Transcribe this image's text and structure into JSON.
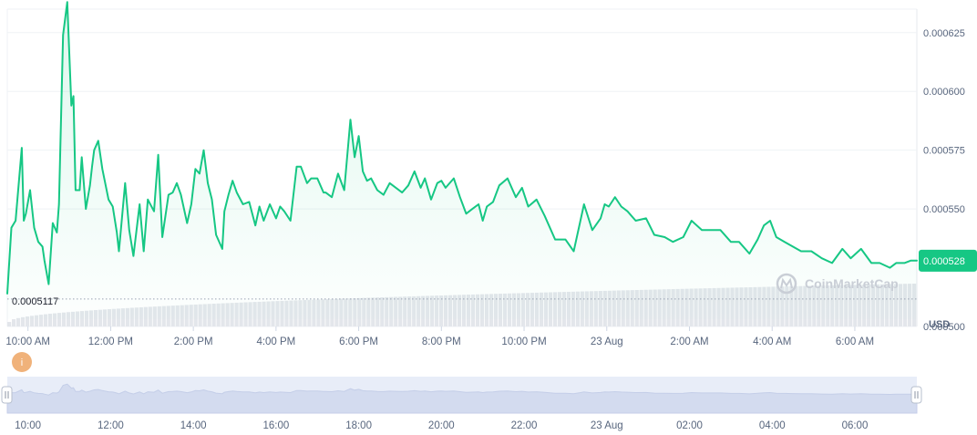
{
  "chart_data": {
    "type": "line",
    "currency_label": "USD",
    "watermark": "CoinMarketCap",
    "info_badge": "i",
    "y_ticks": [
      "0.000625",
      "0.000600",
      "0.000575",
      "0.000550",
      "0.000500"
    ],
    "ylim": [
      0.0005,
      0.000635
    ],
    "current_price_label": "0.000528",
    "min_price_label": "0.0005117",
    "x_tick_labels": [
      "10:00 AM",
      "12:00 PM",
      "2:00 PM",
      "4:00 PM",
      "6:00 PM",
      "8:00 PM",
      "10:00 PM",
      "23 Aug",
      "2:00 AM",
      "4:00 AM",
      "6:00 AM"
    ],
    "x_tick_hours": [
      10,
      12,
      14,
      16,
      18,
      20,
      22,
      24,
      26,
      28,
      30
    ],
    "navigator_labels": [
      "10:00",
      "12:00",
      "14:00",
      "16:00",
      "18:00",
      "20:00",
      "22:00",
      "23 Aug",
      "02:00",
      "04:00",
      "06:00"
    ],
    "colors": {
      "line": "#16c784",
      "grid": "#eff2f5",
      "volume": "#e3e6eb",
      "badge": "#f0b27a",
      "navigator": "#e4e9f7"
    },
    "x_hours": [
      9.5,
      9.6,
      9.7,
      9.85,
      9.9,
      9.95,
      10.05,
      10.15,
      10.25,
      10.35,
      10.4,
      10.5,
      10.6,
      10.7,
      10.75,
      10.85,
      10.95,
      11.05,
      11.1,
      11.15,
      11.25,
      11.3,
      11.4,
      11.5,
      11.55,
      11.6,
      11.7,
      11.8,
      11.95,
      12.05,
      12.15,
      12.2,
      12.35,
      12.45,
      12.55,
      12.7,
      12.8,
      12.9,
      13.05,
      13.15,
      13.25,
      13.4,
      13.5,
      13.6,
      13.7,
      13.85,
      13.95,
      14.05,
      14.15,
      14.25,
      14.35,
      14.45,
      14.55,
      14.7,
      14.75,
      14.85,
      14.95,
      15.05,
      15.2,
      15.35,
      15.5,
      15.6,
      15.7,
      15.85,
      16.0,
      16.1,
      16.2,
      16.35,
      16.5,
      16.6,
      16.75,
      16.85,
      17.0,
      17.15,
      17.2,
      17.35,
      17.5,
      17.65,
      17.8,
      17.9,
      18.0,
      18.1,
      18.2,
      18.3,
      18.45,
      18.6,
      18.75,
      18.9,
      19.05,
      19.2,
      19.35,
      19.5,
      19.6,
      19.75,
      19.9,
      20.0,
      20.1,
      20.3,
      20.45,
      20.6,
      20.75,
      20.9,
      21.0,
      21.1,
      21.25,
      21.4,
      21.6,
      21.8,
      21.95,
      22.1,
      22.3,
      22.5,
      22.75,
      23.0,
      23.2,
      23.45,
      23.65,
      23.85,
      23.95,
      24.05,
      24.2,
      24.35,
      24.5,
      24.7,
      24.95,
      25.15,
      25.4,
      25.6,
      25.85,
      26.05,
      26.3,
      26.5,
      26.75,
      27.0,
      27.2,
      27.45,
      27.65,
      27.8,
      27.95,
      28.1,
      28.3,
      28.5,
      28.7,
      28.95,
      29.2,
      29.45,
      29.7,
      29.9,
      30.15,
      30.4,
      30.6,
      30.85,
      31.0,
      31.2,
      31.35,
      31.5
    ],
    "prices": [
      0.000514,
      0.000542,
      0.000545,
      0.000576,
      0.000545,
      0.000548,
      0.000558,
      0.000542,
      0.000536,
      0.000534,
      0.000528,
      0.000518,
      0.000544,
      0.00054,
      0.000552,
      0.000624,
      0.000638,
      0.000594,
      0.000598,
      0.000558,
      0.000558,
      0.000572,
      0.00055,
      0.00056,
      0.000568,
      0.000575,
      0.000579,
      0.000567,
      0.000554,
      0.000551,
      0.00054,
      0.000532,
      0.000561,
      0.000541,
      0.00053,
      0.000552,
      0.000532,
      0.000554,
      0.000549,
      0.000573,
      0.000538,
      0.000556,
      0.000557,
      0.000561,
      0.000556,
      0.000544,
      0.000552,
      0.000567,
      0.000565,
      0.000575,
      0.000561,
      0.000554,
      0.000539,
      0.000533,
      0.000549,
      0.000556,
      0.000562,
      0.000557,
      0.000552,
      0.000553,
      0.000543,
      0.000551,
      0.000545,
      0.000552,
      0.000546,
      0.000551,
      0.000549,
      0.000545,
      0.000568,
      0.000568,
      0.000561,
      0.000563,
      0.000563,
      0.000557,
      0.000557,
      0.000555,
      0.000565,
      0.000558,
      0.000588,
      0.000572,
      0.000581,
      0.000566,
      0.000562,
      0.000563,
      0.000558,
      0.000556,
      0.000561,
      0.000559,
      0.000557,
      0.00056,
      0.000566,
      0.000559,
      0.000563,
      0.000554,
      0.000561,
      0.000562,
      0.000559,
      0.000563,
      0.000555,
      0.000548,
      0.00055,
      0.000552,
      0.000545,
      0.000551,
      0.000553,
      0.00056,
      0.000563,
      0.000555,
      0.000559,
      0.000551,
      0.000554,
      0.000547,
      0.000537,
      0.000537,
      0.000532,
      0.000552,
      0.000541,
      0.000546,
      0.000552,
      0.000551,
      0.000555,
      0.000551,
      0.000549,
      0.000545,
      0.000546,
      0.000539,
      0.000538,
      0.000536,
      0.000538,
      0.000545,
      0.000541,
      0.000541,
      0.000541,
      0.000536,
      0.000536,
      0.000531,
      0.000537,
      0.000543,
      0.000545,
      0.000538,
      0.000536,
      0.000534,
      0.000532,
      0.000532,
      0.000529,
      0.000527,
      0.000533,
      0.000529,
      0.000533,
      0.000527,
      0.000527,
      0.000525,
      0.000527,
      0.000527,
      0.000528,
      0.000528
    ]
  }
}
